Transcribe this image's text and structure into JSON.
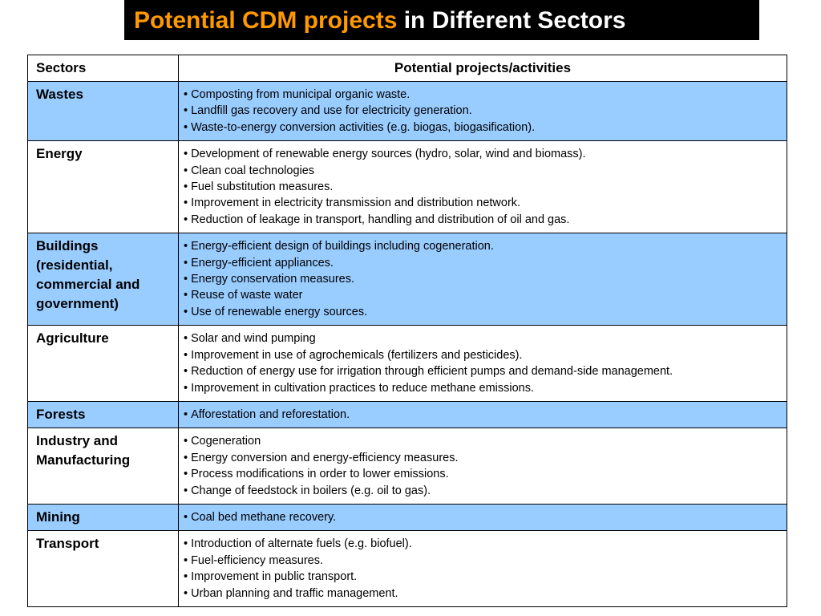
{
  "title": {
    "highlight": "Potential CDM projects",
    "rest": "in Different Sectors"
  },
  "table": {
    "header": [
      "Sectors",
      "Potential projects/activities"
    ],
    "rows": [
      {
        "sector": "Wastes",
        "items": [
          "Composting from municipal organic waste.",
          "Landfill gas recovery and use  for electricity generation.",
          "Waste-to-energy conversion activities (e.g. biogas, biogasification)."
        ]
      },
      {
        "sector": "Energy",
        "items": [
          "Development of renewable energy sources (hydro, solar, wind and biomass).",
          "Clean coal technologies",
          "Fuel substitution measures.",
          "Improvement in electricity transmission and distribution network.",
          "Reduction of leakage in transport, handling and distribution of oil and gas."
        ]
      },
      {
        "sector": "Buildings (residential, commercial and government)",
        "items": [
          "Energy-efficient design of buildings including cogeneration.",
          "Energy-efficient appliances.",
          "Energy conservation measures.",
          "Reuse of waste water",
          "Use of renewable energy sources."
        ]
      },
      {
        "sector": "Agriculture",
        "items": [
          "Solar and wind pumping",
          "Improvement in use of agrochemicals (fertilizers and pesticides).",
          "Reduction of energy use for irrigation through efficient pumps and demand-side management.",
          "Improvement in cultivation practices to reduce methane emissions."
        ]
      },
      {
        "sector": "Forests",
        "items": [
          "Afforestation and reforestation."
        ]
      },
      {
        "sector": "Industry and Manufacturing",
        "items": [
          "Cogeneration",
          "Energy conversion and energy-efficiency measures.",
          "Process modifications in order to lower emissions.",
          "Change of feedstock in boilers (e.g. oil to gas)."
        ]
      },
      {
        "sector": "Mining",
        "items": [
          "Coal bed methane recovery."
        ]
      },
      {
        "sector": "Transport",
        "items": [
          "Introduction of alternate fuels (e.g. biofuel).",
          "Fuel-efficiency measures.",
          "Improvement in public transport.",
          "Urban planning and traffic management."
        ]
      }
    ]
  }
}
